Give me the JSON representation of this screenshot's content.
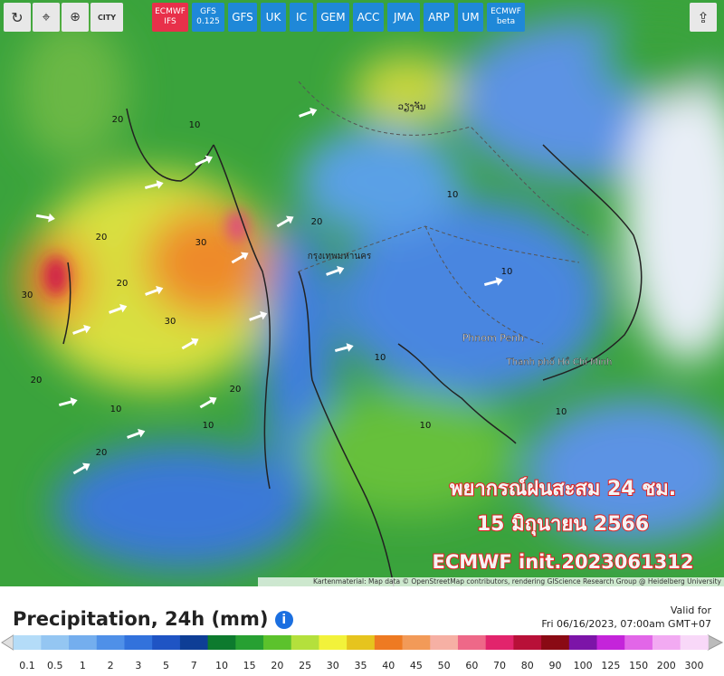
{
  "toolbar": {
    "city_button": "CITY",
    "models": [
      {
        "label": "ECMWF IFS",
        "active": true
      },
      {
        "label": "GFS 0.125",
        "active": false
      },
      {
        "label": "GFS",
        "active": false
      },
      {
        "label": "UK",
        "active": false
      },
      {
        "label": "IC",
        "active": false
      },
      {
        "label": "GEM",
        "active": false
      },
      {
        "label": "ACC",
        "active": false
      },
      {
        "label": "JMA",
        "active": false
      },
      {
        "label": "ARP",
        "active": false
      },
      {
        "label": "UM",
        "active": false
      },
      {
        "label": "ECMWF beta",
        "active": false
      }
    ]
  },
  "map": {
    "place_labels": [
      "Phnom Penh",
      "Thanh phố Hồ Chí Minh",
      "กรุงเทพมหานคร",
      "ວຽງຈັນ"
    ],
    "contour_labels": [
      "20",
      "10",
      "20",
      "30",
      "20",
      "30",
      "20",
      "10",
      "30",
      "20",
      "10",
      "20",
      "10",
      "10",
      "20",
      "10",
      "10",
      "10"
    ],
    "overlay": [
      "พยากรณ์ฝนสะสม 24 ชม.",
      "15 มิถุนายน 2566",
      "ECMWF init.2023061312"
    ],
    "attribution": "Kartenmaterial: Map data © OpenStreetMap contributors, rendering GIScience Research Group @ Heidelberg University"
  },
  "footer": {
    "title": "Precipitation, 24h (mm)",
    "valid_label": "Valid for",
    "valid_time": "Fri 06/16/2023, 07:00am GMT+07",
    "legend_labels": [
      0.1,
      0.5,
      1,
      2,
      3,
      5,
      7,
      10,
      15,
      20,
      25,
      30,
      35,
      40,
      45,
      50,
      60,
      70,
      80,
      90,
      100,
      125,
      150,
      200,
      300
    ],
    "legend_colors": [
      "#b4dcf8",
      "#94c6f2",
      "#74aeee",
      "#4f90e8",
      "#3272dc",
      "#1f54c4",
      "#0e3e96",
      "#0d7a2e",
      "#27a032",
      "#5cc22c",
      "#b4e03c",
      "#f2f23a",
      "#e6c41e",
      "#ee7a22",
      "#f29a58",
      "#f6b0a4",
      "#ee6888",
      "#e2246c",
      "#b81038",
      "#8a0a14",
      "#7c14a8",
      "#c424da",
      "#e266e8",
      "#f2aaf2",
      "#f8d8f8"
    ]
  }
}
